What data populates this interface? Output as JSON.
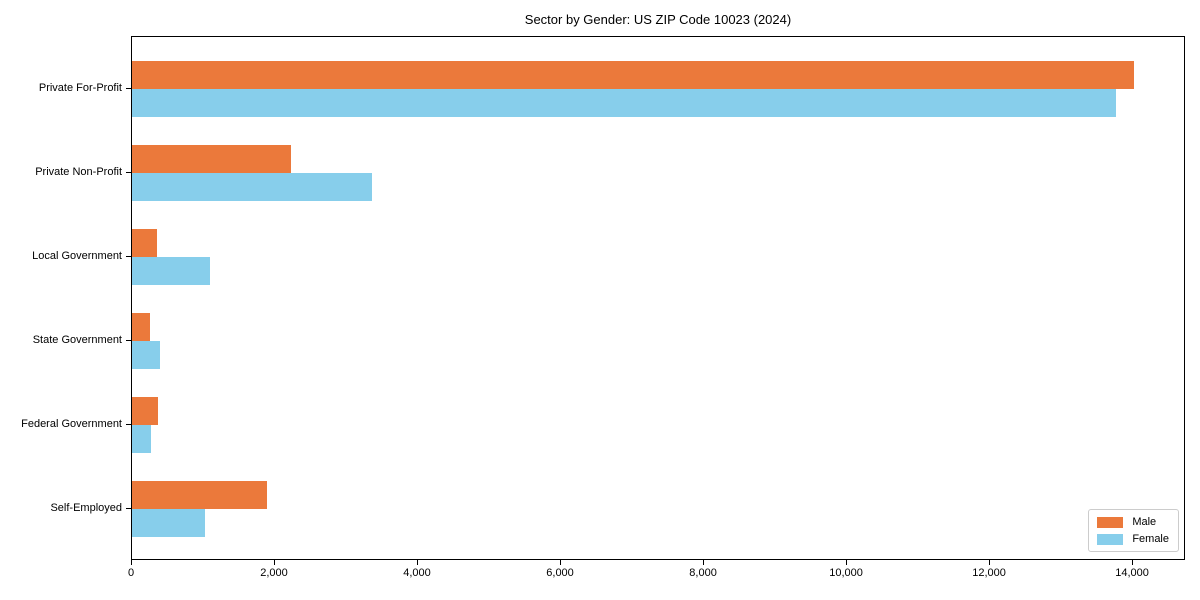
{
  "chart_data": {
    "type": "bar",
    "orientation": "horizontal",
    "title": "Sector by Gender: US ZIP Code 10023 (2024)",
    "categories": [
      "Private For-Profit",
      "Private Non-Profit",
      "Local Government",
      "State Government",
      "Federal Government",
      "Self-Employed"
    ],
    "series": [
      {
        "name": "Male",
        "color": "#EB793B",
        "values": [
          14040,
          2225,
          355,
          250,
          365,
          1890
        ]
      },
      {
        "name": "Female",
        "color": "#87CEEB",
        "values": [
          13785,
          3365,
          1095,
          395,
          265,
          1020
        ]
      }
    ],
    "xlim": [
      0,
      14740
    ],
    "x_tick_values": [
      0,
      2000,
      4000,
      6000,
      8000,
      10000,
      12000,
      14000
    ],
    "x_tick_labels": [
      "0",
      "2,000",
      "4,000",
      "6,000",
      "8,000",
      "10,000",
      "12,000",
      "14,000"
    ],
    "legend": {
      "entries": [
        "Male",
        "Female"
      ],
      "position": "lower right"
    },
    "grid": false,
    "axis_color": "#000000",
    "background_color": "#ffffff"
  }
}
